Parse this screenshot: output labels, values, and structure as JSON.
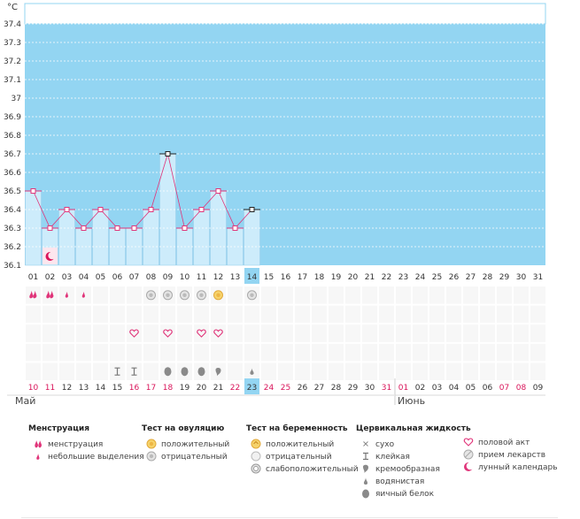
{
  "chart": {
    "unit": "°С",
    "y_ticks": [
      "37.4",
      "37.3",
      "37.2",
      "37.1",
      "37",
      "36.9",
      "36.8",
      "36.7",
      "36.6",
      "36.5",
      "36.4",
      "36.3",
      "36.2",
      "36.1"
    ],
    "day_labels": [
      "01",
      "02",
      "03",
      "04",
      "05",
      "06",
      "07",
      "08",
      "09",
      "10",
      "11",
      "12",
      "13",
      "14",
      "15",
      "16",
      "17",
      "18",
      "19",
      "20",
      "21",
      "22",
      "23",
      "24",
      "25",
      "26",
      "27",
      "28",
      "29",
      "30",
      "31"
    ],
    "current_day_index": 13
  },
  "chart_data": {
    "type": "line",
    "ylim": [
      36.1,
      37.4
    ],
    "x": [
      "01",
      "02",
      "03",
      "04",
      "05",
      "06",
      "07",
      "08",
      "09",
      "10",
      "11",
      "12",
      "13",
      "14"
    ],
    "values": [
      36.5,
      36.3,
      36.4,
      36.3,
      36.4,
      36.3,
      36.3,
      36.4,
      36.7,
      36.3,
      36.4,
      36.5,
      36.3,
      36.4
    ],
    "markers": {
      "square-marked": [
        "09",
        "14"
      ]
    }
  },
  "markers": {
    "moon": [
      "02"
    ],
    "menstruation": [
      {
        "day": "01",
        "kind": "menstruation"
      },
      {
        "day": "02",
        "kind": "menstruation"
      },
      {
        "day": "03",
        "kind": "spotting"
      },
      {
        "day": "04",
        "kind": "spotting"
      }
    ],
    "ovulation_test": [
      {
        "day": "08",
        "kind": "negative"
      },
      {
        "day": "09",
        "kind": "negative"
      },
      {
        "day": "10",
        "kind": "negative"
      },
      {
        "day": "11",
        "kind": "negative"
      },
      {
        "day": "12",
        "kind": "positive"
      },
      {
        "day": "14",
        "kind": "negative"
      }
    ],
    "intercourse": [
      "07",
      "09",
      "11",
      "12"
    ],
    "fluid": [
      {
        "day": "06",
        "kind": "sticky"
      },
      {
        "day": "07",
        "kind": "sticky"
      },
      {
        "day": "09",
        "kind": "eggwhite"
      },
      {
        "day": "10",
        "kind": "eggwhite"
      },
      {
        "day": "11",
        "kind": "eggwhite"
      },
      {
        "day": "12",
        "kind": "creamy"
      },
      {
        "day": "14",
        "kind": "watery"
      }
    ]
  },
  "calendar": {
    "dates": [
      "10",
      "11",
      "12",
      "13",
      "14",
      "15",
      "16",
      "17",
      "18",
      "19",
      "20",
      "21",
      "22",
      "23",
      "24",
      "25",
      "26",
      "27",
      "28",
      "29",
      "30",
      "31",
      "01",
      "02",
      "03",
      "04",
      "05",
      "06",
      "07",
      "08",
      "09"
    ],
    "red_indices": [
      0,
      1,
      6,
      7,
      8,
      12,
      14,
      15,
      21,
      22,
      28,
      29
    ],
    "current_index": 13,
    "month_may": "Май",
    "month_june": "Июнь"
  },
  "legend": {
    "menstruation": {
      "title": "Менструация",
      "items": [
        "менструация",
        "небольшие выделения"
      ]
    },
    "ovulation": {
      "title": "Тест на овуляцию",
      "items": [
        "положительный",
        "отрицательный"
      ]
    },
    "pregnancy": {
      "title": "Тест на беременность",
      "items": [
        "положительный",
        "отрицательный",
        "слабоположительный"
      ]
    },
    "fluid": {
      "title": "Цервикальная жидкость",
      "items": [
        "сухо",
        "клейкая",
        "кремообразная",
        "водянистая",
        "яичный белок"
      ]
    },
    "other": {
      "items": [
        "половой акт",
        "прием лекарств",
        "лунный календарь"
      ]
    }
  },
  "colors": {
    "sky": "#93d5f2",
    "bar": "#cdecfb",
    "bar_edge": "#9bd0ec",
    "line": "#e0357a",
    "accent_red": "#d9145a",
    "current": "#93d5f2"
  }
}
